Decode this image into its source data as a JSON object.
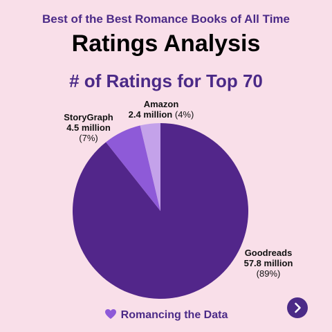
{
  "header": {
    "kicker": "Best of the Best Romance Books of All Time",
    "title": "Ratings Analysis",
    "subtitle": "# of Ratings for Top 70"
  },
  "chart_data": {
    "type": "pie",
    "title": "# of Ratings for Top 70",
    "slices": [
      {
        "label": "Goodreads",
        "value": 57.8,
        "value_text": "57.8 million",
        "pct_text": "(89%)",
        "color": "#52268a"
      },
      {
        "label": "StoryGraph",
        "value": 4.5,
        "value_text": "4.5 million",
        "pct_text": "(7%)",
        "color": "#8e5ad8"
      },
      {
        "label": "Amazon",
        "value": 2.4,
        "value_text": "2.4 million",
        "pct_text": "(4%)",
        "color": "#c4a2ea"
      }
    ],
    "unit": "million",
    "start_angle_deg": 0,
    "direction": "clockwise"
  },
  "footer": {
    "brand": "Romancing the Data",
    "heart_color": "#8e5ad8"
  },
  "nav": {
    "next_icon": "chevron-right-icon",
    "accent": "#4b2a87"
  }
}
